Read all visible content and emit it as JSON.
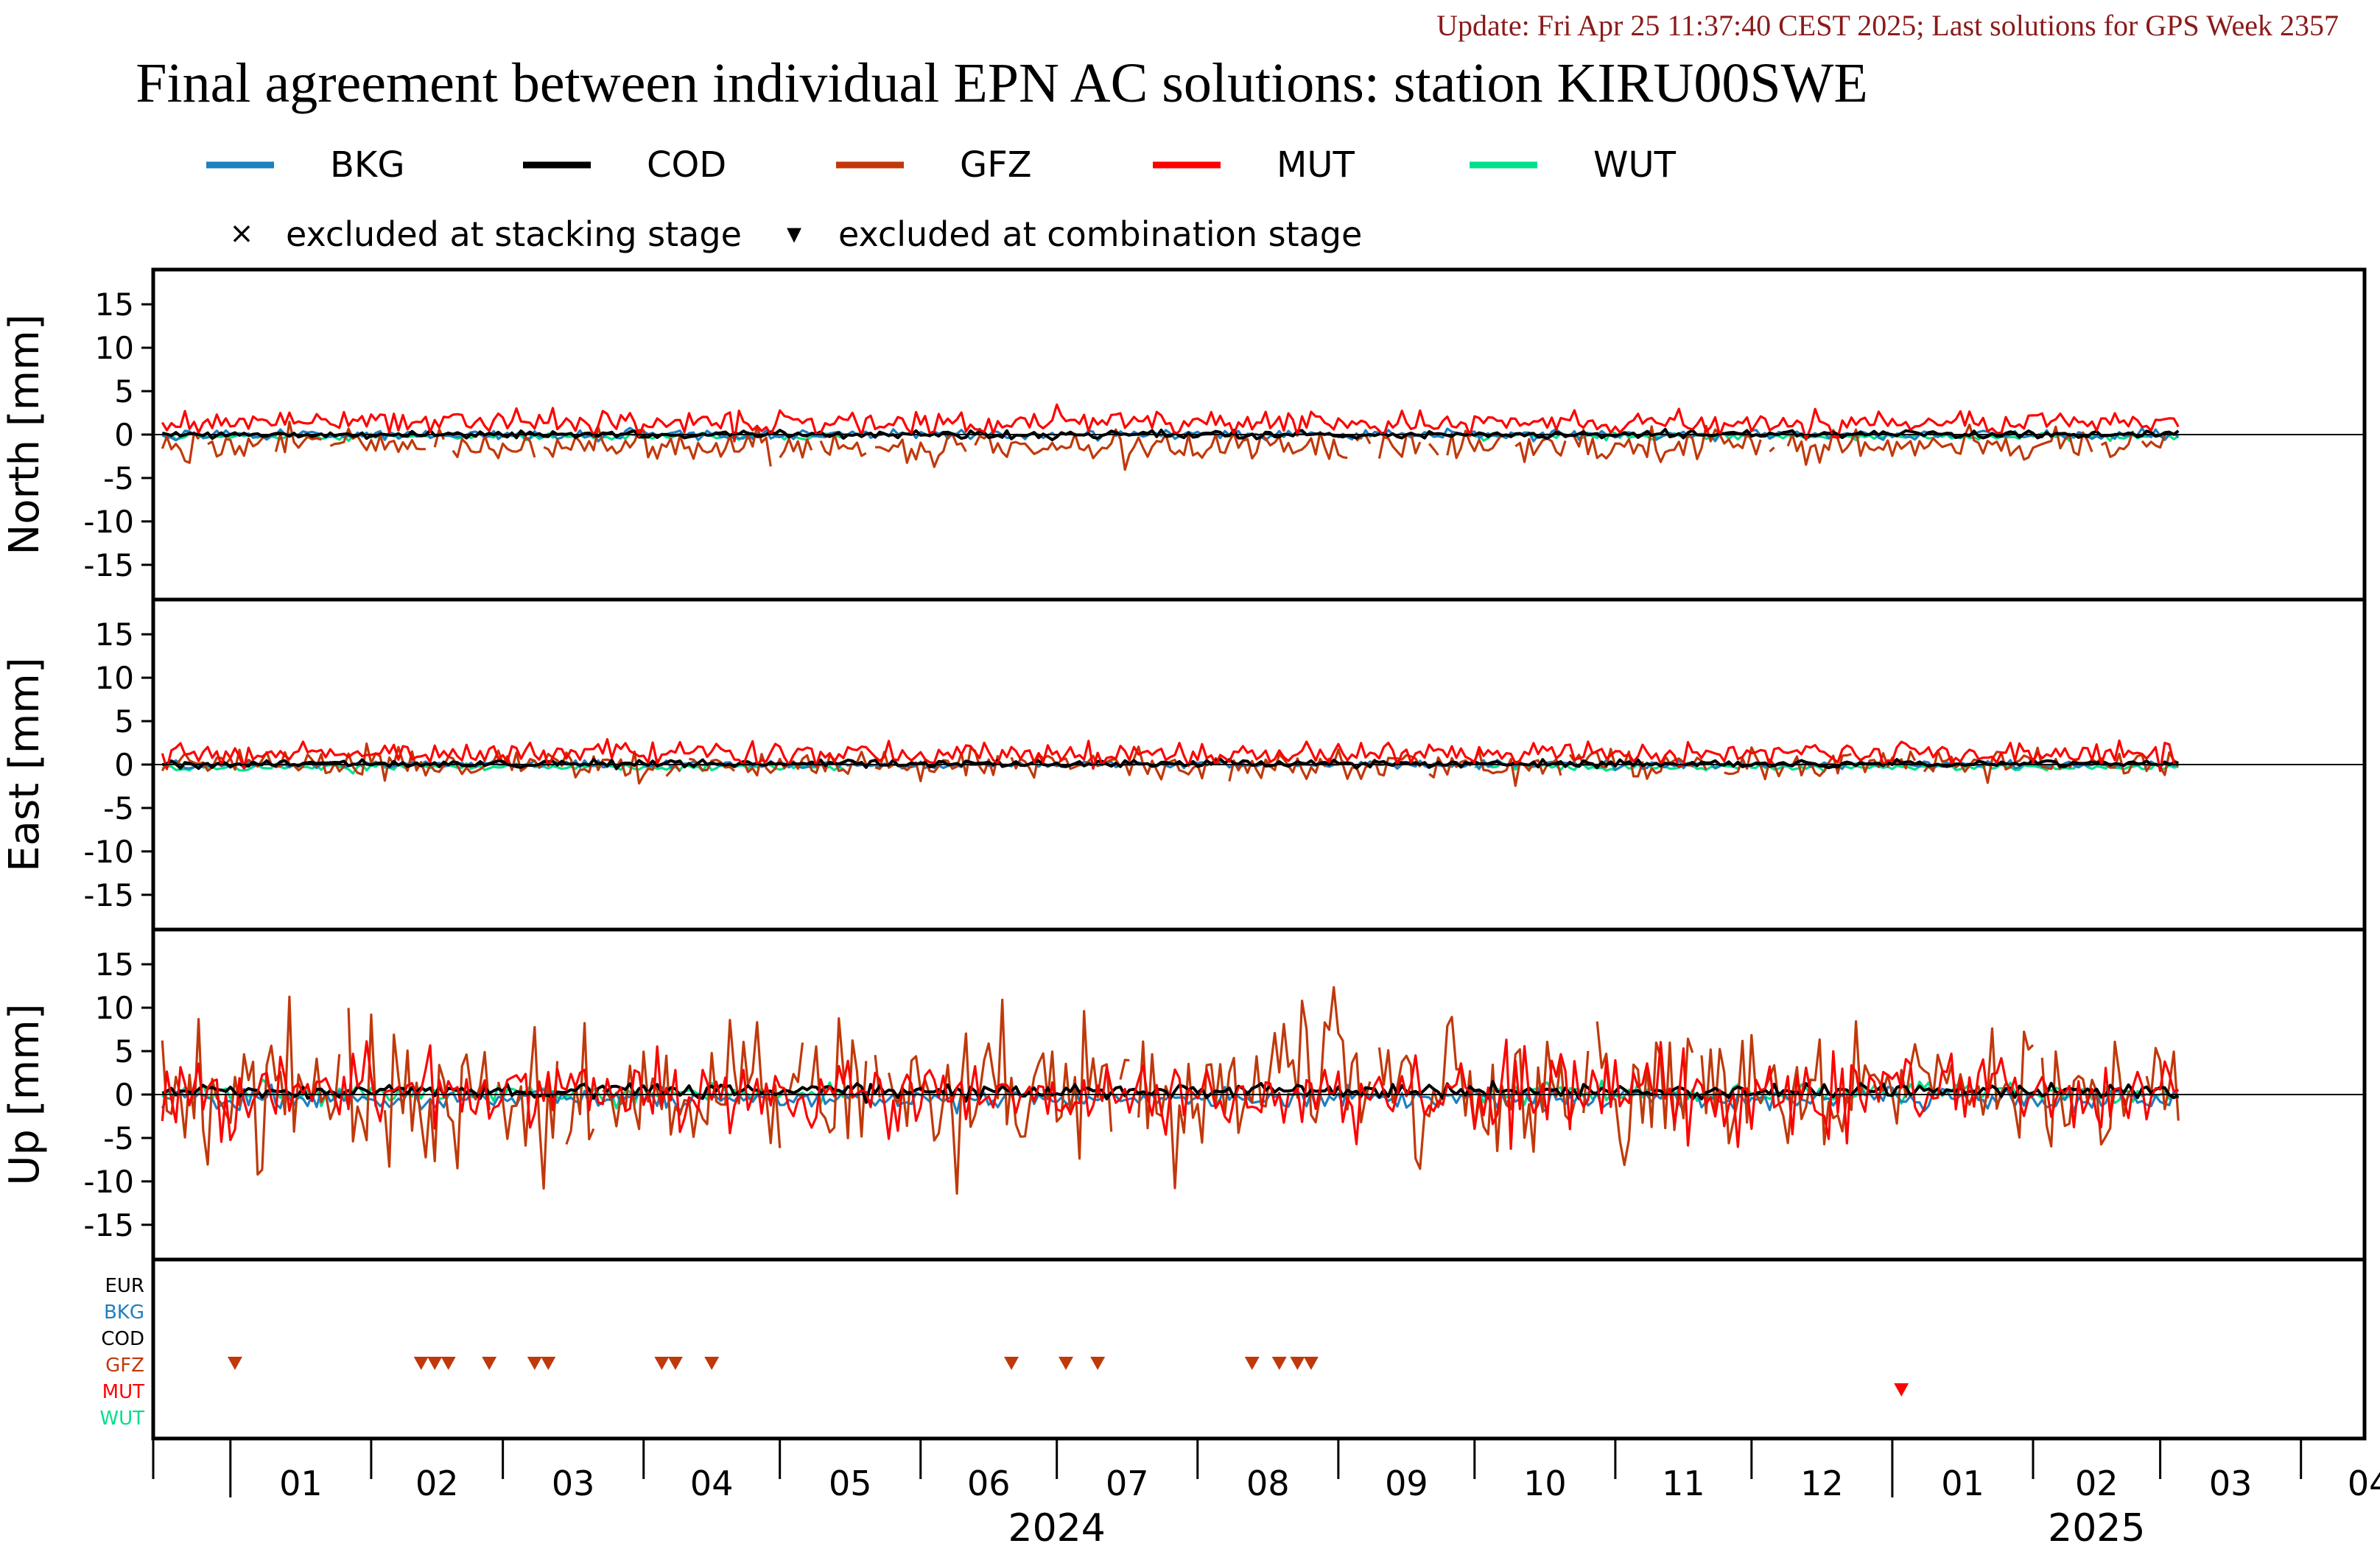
{
  "header": {
    "update_line": "Update: Fri Apr 25 11:37:40 CEST 2025; Last solutions for GPS Week 2357",
    "title": "Final agreement between individual EPN AC solutions: station KIRU00SWE"
  },
  "legend": {
    "series": [
      {
        "name": "BKG",
        "color": "#1f7fbf"
      },
      {
        "name": "COD",
        "color": "#000000"
      },
      {
        "name": "GFZ",
        "color": "#c0390b"
      },
      {
        "name": "MUT",
        "color": "#ff0000"
      },
      {
        "name": "WUT",
        "color": "#00e08a"
      }
    ],
    "markers": [
      {
        "symbol": "×",
        "label": "excluded at stacking stage"
      },
      {
        "symbol": "▾",
        "label": "excluded at combination stage"
      }
    ]
  },
  "chart_data": {
    "type": "line",
    "x_unit": "month",
    "x_range": [
      "2023-12-15",
      "2025-04-15"
    ],
    "month_ticks": [
      "01",
      "02",
      "03",
      "04",
      "05",
      "06",
      "07",
      "08",
      "09",
      "10",
      "11",
      "12",
      "01",
      "02",
      "03",
      "04"
    ],
    "year_labels": [
      {
        "label": "2024",
        "month_center": "2024-07-01"
      },
      {
        "label": "2025",
        "month_center": "2025-02-15"
      }
    ],
    "panels": [
      {
        "name": "north",
        "ylabel": "North [mm]",
        "ylim": [
          -19,
          19
        ],
        "yticks": [
          15,
          10,
          5,
          0,
          -5,
          -10,
          -15
        ],
        "series": {
          "BKG": {
            "level": 0.0,
            "noise": 0.4
          },
          "COD": {
            "level": 0.0,
            "noise": 0.3
          },
          "GFZ": {
            "level": -1.3,
            "noise": 1.3
          },
          "MUT": {
            "level": 1.4,
            "noise": 1.0
          },
          "WUT": {
            "level": -0.2,
            "noise": 0.3
          }
        }
      },
      {
        "name": "east",
        "ylabel": "East [mm]",
        "ylim": [
          -19,
          19
        ],
        "yticks": [
          15,
          10,
          5,
          0,
          -5,
          -10,
          -15
        ],
        "series": {
          "BKG": {
            "level": 0.0,
            "noise": 0.3
          },
          "COD": {
            "level": 0.1,
            "noise": 0.3
          },
          "GFZ": {
            "level": 0.0,
            "noise": 1.2
          },
          "MUT": {
            "level": 1.3,
            "noise": 0.9
          },
          "WUT": {
            "level": -0.3,
            "noise": 0.3
          }
        }
      },
      {
        "name": "up",
        "ylabel": "Up [mm]",
        "ylim": [
          -19,
          19
        ],
        "yticks": [
          15,
          10,
          5,
          0,
          -5,
          -10,
          -15
        ],
        "series": {
          "BKG": {
            "level": -0.5,
            "noise": 0.9
          },
          "COD": {
            "level": 0.4,
            "noise": 0.6
          },
          "GFZ": {
            "level": 0.5,
            "noise": 5.5
          },
          "MUT": {
            "level": 0.0,
            "noise": 3.0
          },
          "WUT": {
            "level": 0.2,
            "noise": 0.8
          }
        }
      }
    ],
    "exclusions": {
      "rows": [
        {
          "name": "EUR",
          "color": "#000000"
        },
        {
          "name": "BKG",
          "color": "#1f7fbf"
        },
        {
          "name": "COD",
          "color": "#000000"
        },
        {
          "name": "GFZ",
          "color": "#c0390b"
        },
        {
          "name": "MUT",
          "color": "#ff0000"
        },
        {
          "name": "WUT",
          "color": "#00e08a"
        }
      ],
      "markers": [
        {
          "row": "GFZ",
          "date": "2024-01-02"
        },
        {
          "row": "GFZ",
          "date": "2024-02-12"
        },
        {
          "row": "GFZ",
          "date": "2024-02-15"
        },
        {
          "row": "GFZ",
          "date": "2024-02-18"
        },
        {
          "row": "GFZ",
          "date": "2024-02-27"
        },
        {
          "row": "GFZ",
          "date": "2024-03-08"
        },
        {
          "row": "GFZ",
          "date": "2024-03-11"
        },
        {
          "row": "GFZ",
          "date": "2024-04-05"
        },
        {
          "row": "GFZ",
          "date": "2024-04-08"
        },
        {
          "row": "GFZ",
          "date": "2024-04-16"
        },
        {
          "row": "GFZ",
          "date": "2024-06-21"
        },
        {
          "row": "GFZ",
          "date": "2024-07-03"
        },
        {
          "row": "GFZ",
          "date": "2024-07-10"
        },
        {
          "row": "GFZ",
          "date": "2024-08-13"
        },
        {
          "row": "GFZ",
          "date": "2024-08-19"
        },
        {
          "row": "GFZ",
          "date": "2024-08-23"
        },
        {
          "row": "GFZ",
          "date": "2024-08-26"
        },
        {
          "row": "MUT",
          "date": "2025-01-03"
        }
      ]
    }
  }
}
